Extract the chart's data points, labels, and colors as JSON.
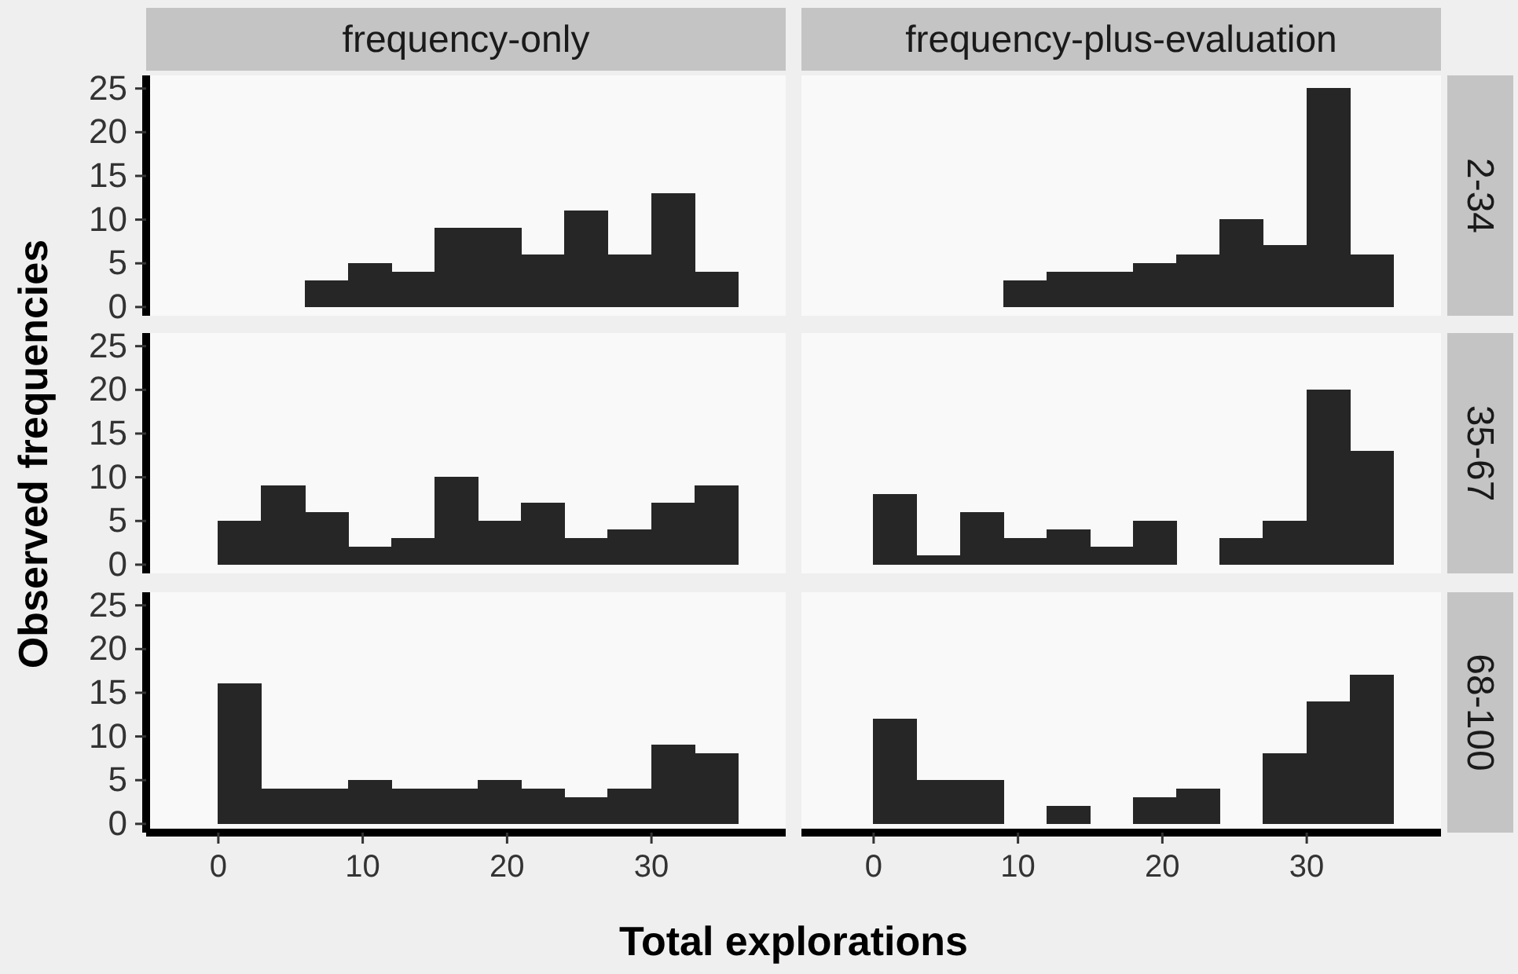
{
  "chart_data": [
    {
      "type": "histogram",
      "title": "frequency-only",
      "bins": [
        0,
        3,
        6,
        9,
        12,
        15,
        18,
        21,
        24,
        27,
        30,
        33,
        36
      ],
      "values": [
        0,
        0,
        3,
        5,
        4,
        9,
        9,
        6,
        11,
        6,
        13,
        4
      ],
      "color": "#262626",
      "xlim": [
        -5,
        39.3
      ],
      "ylim": [
        -1,
        26.5
      ],
      "yticks": [
        0,
        5,
        10,
        15,
        20,
        25
      ],
      "tick_labels": "y"
    },
    {
      "type": "histogram",
      "title": "frequency-plus-evaluation",
      "annotations": [
        "2-34"
      ],
      "bins": [
        0,
        3,
        6,
        9,
        12,
        15,
        18,
        21,
        24,
        27,
        30,
        33,
        36
      ],
      "values": [
        0,
        0,
        0,
        3,
        4,
        4,
        5,
        6,
        10,
        7,
        25,
        6
      ],
      "color": "#262626",
      "xlim": [
        -5,
        39.3
      ],
      "ylim": [
        -1,
        26.5
      ],
      "tick_labels": false
    },
    {
      "type": "histogram",
      "ylabel": "Observed frequencies",
      "bins": [
        0,
        3,
        6,
        9,
        12,
        15,
        18,
        21,
        24,
        27,
        30,
        33,
        36
      ],
      "values": [
        5,
        9,
        6,
        2,
        3,
        10,
        5,
        7,
        3,
        4,
        7,
        9
      ],
      "color": "#262626",
      "xlim": [
        -5,
        39.3
      ],
      "ylim": [
        -1,
        26.5
      ],
      "yticks": [
        0,
        5,
        10,
        15,
        20,
        25
      ],
      "tick_labels": "y"
    },
    {
      "type": "histogram",
      "annotations": [
        "35-67"
      ],
      "bins": [
        0,
        3,
        6,
        9,
        12,
        15,
        18,
        21,
        24,
        27,
        30,
        33,
        36
      ],
      "values": [
        8,
        1,
        6,
        3,
        4,
        2,
        5,
        0,
        3,
        5,
        20,
        13
      ],
      "color": "#262626",
      "xlim": [
        -5,
        39.3
      ],
      "ylim": [
        -1,
        26.5
      ],
      "tick_labels": false
    },
    {
      "type": "histogram",
      "xlabel": "Total explorations",
      "bins": [
        0,
        3,
        6,
        9,
        12,
        15,
        18,
        21,
        24,
        27,
        30,
        33,
        36
      ],
      "values": [
        16,
        4,
        4,
        5,
        4,
        4,
        5,
        4,
        3,
        4,
        9,
        8
      ],
      "color": "#262626",
      "xlim": [
        -5,
        39.3
      ],
      "ylim": [
        -1,
        26.5
      ],
      "xticks": [
        0,
        10,
        20,
        30
      ],
      "yticks": [
        0,
        5,
        10,
        15,
        20,
        25
      ]
    },
    {
      "type": "histogram",
      "annotations": [
        "68-100"
      ],
      "bins": [
        0,
        3,
        6,
        9,
        12,
        15,
        18,
        21,
        24,
        27,
        30,
        33,
        36
      ],
      "values": [
        12,
        5,
        5,
        0,
        2,
        0,
        3,
        4,
        0,
        8,
        14,
        17
      ],
      "color": "#262626",
      "xlim": [
        -5,
        39.3
      ],
      "ylim": [
        -1,
        26.5
      ],
      "xticks": [
        0,
        10,
        20,
        30
      ],
      "tick_labels": "x"
    }
  ]
}
